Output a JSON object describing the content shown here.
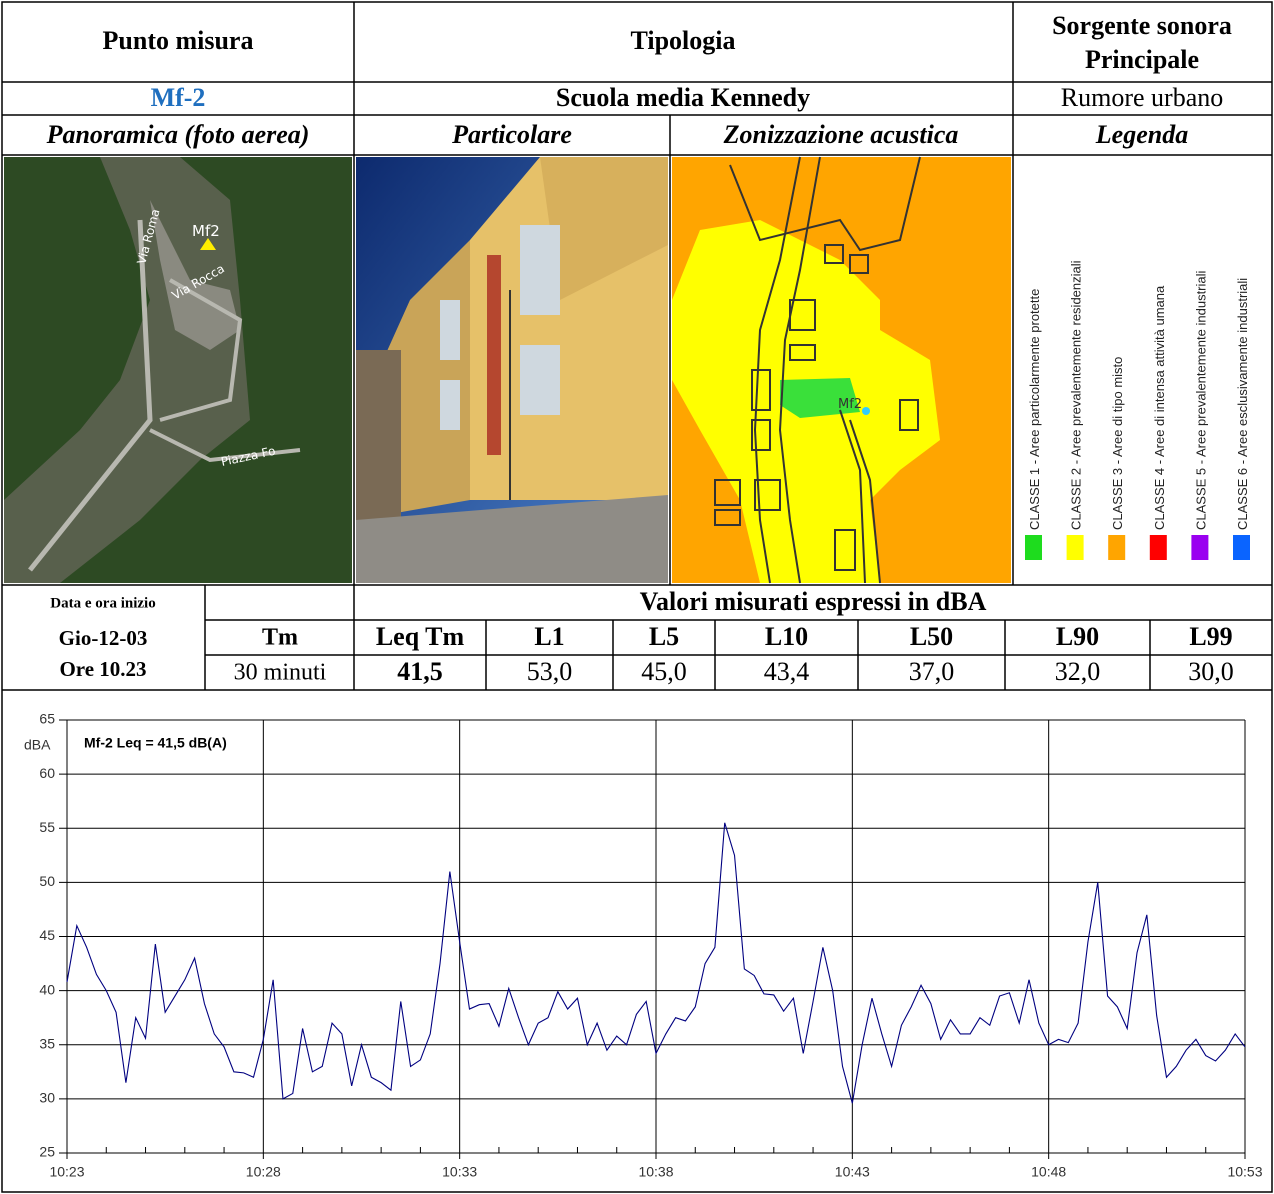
{
  "header": {
    "punto": "Punto misura",
    "tipologia": "Tipologia",
    "sorgente": [
      "Sorgente sonora",
      "Principale"
    ]
  },
  "site": {
    "punto": "Mf-2",
    "tipologia": "Scuola media Kennedy",
    "sorgente": "Rumore urbano"
  },
  "views": [
    "Panoramica (foto aerea)",
    "Particolare",
    "Zonizzazione acustica",
    "Legenda"
  ],
  "photo_labels": {
    "aerial": [
      "Mf2",
      "Via Roma",
      "Via Rocca",
      "Piazza Fo"
    ],
    "zone": "Mf2"
  },
  "legend": [
    {
      "label": "CLASSE 1 - Aree particolarmente protette",
      "color": "#1edc1e"
    },
    {
      "label": "CLASSE 2 - Aree prevalentemente residenziali",
      "color": "#ffff00"
    },
    {
      "label": "CLASSE 3 - Aree di tipo misto",
      "color": "#ffa500"
    },
    {
      "label": "CLASSE 4 - Aree  di intensa attività umana",
      "color": "#ff0000"
    },
    {
      "label": "CLASSE 5 - Aree prevalentemente industriali",
      "color": "#9a00f0"
    },
    {
      "label": "CLASSE 6 - Aree esclusivamente industriali",
      "color": "#0a64ff"
    }
  ],
  "measurements": {
    "date_label": "Data e ora inizio",
    "values_title": "Valori misurati espressi in dBA",
    "date": [
      "Gio-12-03",
      "Ore 10.23"
    ],
    "tm_label": "Tm",
    "tm": "30 minuti",
    "columns": [
      "Leq Tm",
      "L1",
      "L5",
      "L10",
      "L50",
      "L90",
      "L99"
    ],
    "values": [
      "41,5",
      "53,0",
      "45,0",
      "43,4",
      "37,0",
      "32,0",
      "30,0"
    ]
  },
  "chart_data": {
    "type": "line",
    "title": "Mf-2 Leq = 41,5 dB(A)",
    "y_label": "dBA",
    "series": [
      {
        "color": "#000080",
        "x": [
          623,
          623.25,
          623.5,
          623.75,
          624,
          624.25,
          624.5,
          624.75,
          625,
          625.25,
          625.5,
          625.75,
          626,
          626.25,
          626.5,
          626.75,
          627,
          627.25,
          627.5,
          627.75,
          628,
          628.25,
          628.5,
          628.75,
          629,
          629.25,
          629.5,
          629.75,
          630,
          630.25,
          630.5,
          630.75,
          631,
          631.25,
          631.5,
          631.75,
          632,
          632.25,
          632.5,
          632.75,
          633,
          633.25,
          633.5,
          633.75,
          634,
          634.25,
          634.5,
          634.75,
          635,
          635.25,
          635.5,
          635.75,
          636,
          636.25,
          636.5,
          636.75,
          637,
          637.25,
          637.5,
          637.75,
          638,
          638.25,
          638.5,
          638.75,
          639,
          639.25,
          639.5,
          639.75,
          640,
          640.25,
          640.5,
          640.75,
          641,
          641.25,
          641.5,
          641.75,
          642,
          642.25,
          642.5,
          642.75,
          643,
          643.25,
          643.5,
          643.75,
          644,
          644.25,
          644.5,
          644.75,
          645,
          645.25,
          645.5,
          645.75,
          646,
          646.25,
          646.5,
          646.75,
          647,
          647.25,
          647.5,
          647.75,
          648,
          648.25,
          648.5,
          648.75,
          649,
          649.25,
          649.5,
          649.75,
          650,
          650.25,
          650.5,
          650.75,
          651,
          651.25,
          651.5,
          651.75,
          652,
          652.25,
          652.5,
          652.75,
          653
        ],
        "values": [
          40.8,
          46,
          44,
          41.5,
          40,
          38,
          31.5,
          37.5,
          35.6,
          44.3,
          38,
          39.5,
          41,
          43,
          38.8,
          36,
          34.8,
          32.5,
          32.4,
          32,
          35.5,
          41,
          30,
          30.5,
          36.5,
          32.5,
          33,
          37,
          36,
          31.2,
          35,
          32,
          31.5,
          30.8,
          39,
          33,
          33.6,
          36,
          42.5,
          51,
          44.5,
          38.3,
          38.7,
          38.8,
          36.7,
          40.2,
          37.5,
          35,
          37,
          37.5,
          39.9,
          38.3,
          39.3,
          35,
          37,
          34.5,
          35.8,
          35,
          37.8,
          39,
          34.2,
          36,
          37.5,
          37.2,
          38.5,
          42.5,
          44,
          55.5,
          52.5,
          42,
          41.4,
          39.7,
          39.6,
          38.1,
          39.3,
          34.2,
          39,
          44,
          40,
          33,
          29.6,
          35,
          39.3,
          36,
          33,
          36.8,
          38.5,
          40.5,
          38.8,
          35.5,
          37.3,
          36,
          36,
          37.5,
          36.8,
          39.5,
          39.8,
          37,
          41,
          37,
          35,
          35.5,
          35.2,
          37,
          44.5,
          50,
          39.5,
          38.5,
          36.5,
          43.5,
          47,
          37.7,
          32,
          33,
          34.5,
          35.5,
          34,
          33.5,
          34.5,
          36,
          34.8
        ]
      }
    ],
    "xlim": [
      623,
      653
    ],
    "xticks": [
      {
        "value": 623,
        "label": "10:23"
      },
      {
        "value": 628,
        "label": "10:28"
      },
      {
        "value": 633,
        "label": "10:33"
      },
      {
        "value": 638,
        "label": "10:38"
      },
      {
        "value": 643,
        "label": "10:43"
      },
      {
        "value": 648,
        "label": "10:48"
      },
      {
        "value": 653,
        "label": "10:53"
      }
    ],
    "xminorticks": [
      624,
      625,
      626,
      627,
      629,
      630,
      631,
      632,
      634,
      635,
      636,
      637,
      639,
      640,
      641,
      642,
      644,
      645,
      646,
      647,
      649,
      650,
      651,
      652
    ],
    "ylim": [
      25,
      65
    ],
    "yticks": [
      25,
      30,
      35,
      40,
      45,
      50,
      55,
      60,
      65
    ],
    "grid": true
  }
}
